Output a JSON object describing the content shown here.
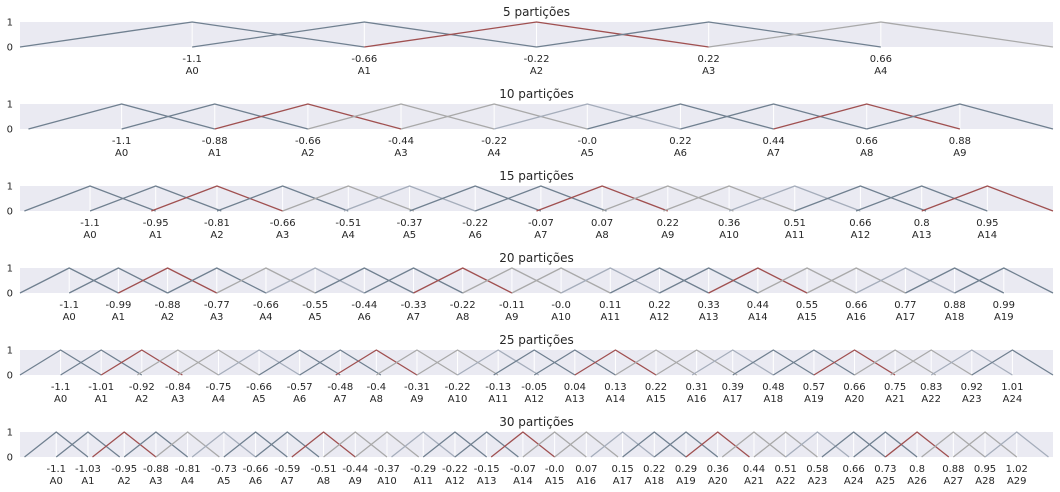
{
  "colors": {
    "background": "#eaeaf2",
    "grid": "#ffffff",
    "text": "#262626",
    "palette": [
      "#708090",
      "#708090",
      "#a05050",
      "#a9a9a9",
      "#a9a9a9",
      "#a5adbb"
    ]
  },
  "chart_data": [
    {
      "type": "line",
      "title": "5 partições",
      "yticks": [
        "0",
        "1"
      ],
      "ylim": [
        0,
        1
      ],
      "xlim": [
        -1.54,
        1.1
      ],
      "grid": true,
      "centers": [
        "-1.1",
        "-0.66",
        "-0.22",
        "0.22",
        "0.66"
      ],
      "labels": [
        "A0",
        "A1",
        "A2",
        "A3",
        "A4"
      ],
      "series_colors": [
        "#708090",
        "#708090",
        "#a05050",
        "#708090",
        "#a9a9a9"
      ]
    },
    {
      "type": "line",
      "title": "10 partições",
      "yticks": [
        "0",
        "1"
      ],
      "ylim": [
        0,
        1
      ],
      "xlim": [
        -1.34,
        1.1
      ],
      "grid": true,
      "centers": [
        "-1.1",
        "-0.88",
        "-0.66",
        "-0.44",
        "-0.22",
        "-0.0",
        "0.22",
        "0.44",
        "0.66",
        "0.88"
      ],
      "labels": [
        "A0",
        "A1",
        "A2",
        "A3",
        "A4",
        "A5",
        "A6",
        "A7",
        "A8",
        "A9"
      ],
      "series_colors": [
        "#708090",
        "#708090",
        "#a05050",
        "#a9a9a9",
        "#a9a9a9",
        "#a5adbb",
        "#708090",
        "#708090",
        "#a05050",
        "#708090"
      ]
    },
    {
      "type": "line",
      "title": "15 partições",
      "yticks": [
        "0",
        "1"
      ],
      "ylim": [
        0,
        1
      ],
      "xlim": [
        -1.26,
        1.1
      ],
      "grid": true,
      "centers": [
        "-1.1",
        "-0.95",
        "-0.81",
        "-0.66",
        "-0.51",
        "-0.37",
        "-0.22",
        "-0.07",
        "0.07",
        "0.22",
        "0.36",
        "0.51",
        "0.66",
        "0.8",
        "0.95"
      ],
      "labels": [
        "A0",
        "A1",
        "A2",
        "A3",
        "A4",
        "A5",
        "A6",
        "A7",
        "A8",
        "A9",
        "A10",
        "A11",
        "A12",
        "A13",
        "A14"
      ],
      "series_colors": [
        "#708090",
        "#708090",
        "#a05050",
        "#708090",
        "#a9a9a9",
        "#a5adbb",
        "#708090",
        "#708090",
        "#a05050",
        "#a9a9a9",
        "#a9a9a9",
        "#a5adbb",
        "#708090",
        "#708090",
        "#a05050"
      ]
    },
    {
      "type": "line",
      "title": "20 partições",
      "yticks": [
        "0",
        "1"
      ],
      "ylim": [
        0,
        1
      ],
      "xlim": [
        -1.21,
        1.1
      ],
      "grid": true,
      "centers": [
        "-1.1",
        "-0.99",
        "-0.88",
        "-0.77",
        "-0.66",
        "-0.55",
        "-0.44",
        "-0.33",
        "-0.22",
        "-0.11",
        "-0.0",
        "0.11",
        "0.22",
        "0.33",
        "0.44",
        "0.55",
        "0.66",
        "0.77",
        "0.88",
        "0.99"
      ],
      "labels": [
        "A0",
        "A1",
        "A2",
        "A3",
        "A4",
        "A5",
        "A6",
        "A7",
        "A8",
        "A9",
        "A10",
        "A11",
        "A12",
        "A13",
        "A14",
        "A15",
        "A16",
        "A17",
        "A18",
        "A19"
      ],
      "series_colors": [
        "#708090",
        "#708090",
        "#a05050",
        "#708090",
        "#a9a9a9",
        "#a5adbb",
        "#708090",
        "#708090",
        "#a05050",
        "#a9a9a9",
        "#a9a9a9",
        "#a5adbb",
        "#708090",
        "#708090",
        "#a05050",
        "#a9a9a9",
        "#a9a9a9",
        "#a5adbb",
        "#708090",
        "#708090"
      ]
    },
    {
      "type": "line",
      "title": "25 partições",
      "yticks": [
        "0",
        "1"
      ],
      "ylim": [
        0,
        1
      ],
      "xlim": [
        -1.19,
        1.1
      ],
      "grid": true,
      "centers": [
        "-1.1",
        "-1.01",
        "-0.92",
        "-0.84",
        "-0.75",
        "-0.66",
        "-0.57",
        "-0.48",
        "-0.4",
        "-0.31",
        "-0.22",
        "-0.13",
        "-0.05",
        "0.04",
        "0.13",
        "0.22",
        "0.31",
        "0.39",
        "0.48",
        "0.57",
        "0.66",
        "0.75",
        "0.83",
        "0.92",
        "1.01"
      ],
      "labels": [
        "A0",
        "A1",
        "A2",
        "A3",
        "A4",
        "A5",
        "A6",
        "A7",
        "A8",
        "A9",
        "A10",
        "A11",
        "A12",
        "A13",
        "A14",
        "A15",
        "A16",
        "A17",
        "A18",
        "A19",
        "A20",
        "A21",
        "A22",
        "A23",
        "A24"
      ],
      "series_colors": [
        "#708090",
        "#708090",
        "#a05050",
        "#a9a9a9",
        "#a9a9a9",
        "#a5adbb",
        "#708090",
        "#708090",
        "#a05050",
        "#a9a9a9",
        "#a9a9a9",
        "#a5adbb",
        "#708090",
        "#708090",
        "#a05050",
        "#a9a9a9",
        "#a9a9a9",
        "#a5adbb",
        "#708090",
        "#708090",
        "#a05050",
        "#a9a9a9",
        "#a9a9a9",
        "#a5adbb",
        "#708090"
      ]
    },
    {
      "type": "line",
      "title": "30 partições",
      "yticks": [
        "0",
        "1"
      ],
      "ylim": [
        0,
        1
      ],
      "xlim": [
        -1.18,
        1.1
      ],
      "grid": true,
      "centers": [
        "-1.1",
        "-1.03",
        "-0.95",
        "-0.88",
        "-0.81",
        "-0.73",
        "-0.66",
        "-0.59",
        "-0.51",
        "-0.44",
        "-0.37",
        "-0.29",
        "-0.22",
        "-0.15",
        "-0.07",
        "-0.0",
        "0.07",
        "0.15",
        "0.22",
        "0.29",
        "0.36",
        "0.44",
        "0.51",
        "0.58",
        "0.66",
        "0.73",
        "0.8",
        "0.88",
        "0.95",
        "1.02"
      ],
      "labels": [
        "A0",
        "A1",
        "A2",
        "A3",
        "A4",
        "A5",
        "A6",
        "A7",
        "A8",
        "A9",
        "A10",
        "A11",
        "A12",
        "A13",
        "A14",
        "A15",
        "A16",
        "A17",
        "A18",
        "A19",
        "A20",
        "A21",
        "A22",
        "A23",
        "A24",
        "A25",
        "A26",
        "A27",
        "A28",
        "A29"
      ],
      "series_colors": [
        "#708090",
        "#708090",
        "#a05050",
        "#708090",
        "#a9a9a9",
        "#a5adbb",
        "#708090",
        "#708090",
        "#a05050",
        "#a9a9a9",
        "#a9a9a9",
        "#a5adbb",
        "#708090",
        "#708090",
        "#a05050",
        "#a9a9a9",
        "#a9a9a9",
        "#a5adbb",
        "#708090",
        "#708090",
        "#a05050",
        "#a9a9a9",
        "#a9a9a9",
        "#a5adbb",
        "#708090",
        "#708090",
        "#a05050",
        "#a9a9a9",
        "#a9a9a9",
        "#a5adbb"
      ]
    }
  ]
}
